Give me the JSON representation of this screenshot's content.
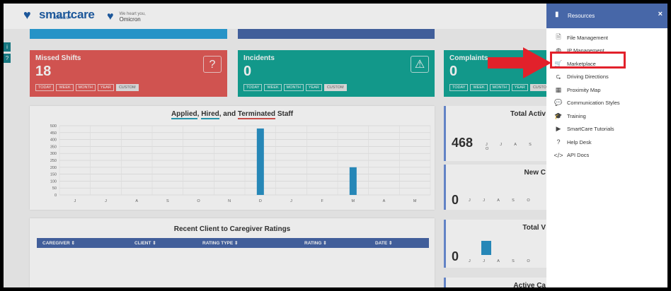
{
  "header": {
    "logo_text": "smartcare",
    "logo_sub": "software™",
    "tenant_tagline": "We heart you,",
    "tenant_name": "Omicron"
  },
  "side_tabs": [
    "i",
    "?"
  ],
  "stat_cards": [
    {
      "title": "Missed Shifts",
      "value": "18",
      "icon": "question-icon",
      "icon_glyph": "?",
      "color": "#e25b57"
    },
    {
      "title": "Incidents",
      "value": "0",
      "icon": "warning-icon",
      "icon_glyph": "⚠",
      "color": "#14a596"
    },
    {
      "title": "Complaints",
      "value": "0",
      "icon": "",
      "icon_glyph": "",
      "color": "#14a596"
    }
  ],
  "pills": [
    "TODAY",
    "WEEK",
    "MONTH",
    "YEAR",
    "CUSTOM"
  ],
  "staff_chart": {
    "title_parts": [
      "Applied",
      ", ",
      "Hired",
      ", and ",
      "Terminated",
      " Staff"
    ]
  },
  "chart_data": {
    "type": "bar",
    "categories": [
      "J",
      "J",
      "A",
      "S",
      "O",
      "N",
      "D",
      "J",
      "F",
      "M",
      "A",
      "M"
    ],
    "values": [
      0,
      0,
      0,
      0,
      0,
      0,
      480,
      0,
      0,
      200,
      0,
      0
    ],
    "y_ticks": [
      "500",
      "450",
      "400",
      "350",
      "300",
      "250",
      "200",
      "150",
      "100",
      "50",
      "0"
    ],
    "ylim": [
      0,
      500
    ],
    "color": "#2a93c7"
  },
  "ratings": {
    "title": "Recent Client to Caregiver Ratings",
    "columns": [
      "CAREGIVER ⇕",
      "CLIENT ⇕",
      "RATING TYPE ⇕",
      "RATING ⇕",
      "DATE ⇕"
    ]
  },
  "right_cards": [
    {
      "title": "Total Activ",
      "value": "468",
      "months": "J J A S O"
    },
    {
      "title": "New C",
      "value": "0",
      "months": "J J A S O"
    },
    {
      "title": "Total V",
      "value": "0",
      "months": "J J A S O"
    },
    {
      "title": "Active Ca",
      "value": "",
      "months": ""
    }
  ],
  "drawer": {
    "title": "Resources",
    "close": "×",
    "items": [
      {
        "label": "File Management",
        "icon": "file-icon",
        "glyph": "🗎"
      },
      {
        "label": "IP Management",
        "icon": "globe-icon",
        "glyph": "◍"
      },
      {
        "label": "Marketplace",
        "icon": "cart-icon",
        "glyph": "🛒"
      },
      {
        "label": "Driving Directions",
        "icon": "signpost-icon",
        "glyph": "⮎"
      },
      {
        "label": "Proximity Map",
        "icon": "map-icon",
        "glyph": "▦"
      },
      {
        "label": "Communication Styles",
        "icon": "chat-icon",
        "glyph": "💬"
      },
      {
        "label": "Training",
        "icon": "graduation-cap-icon",
        "glyph": "🎓"
      },
      {
        "label": "SmartCare Tutorials",
        "icon": "video-icon",
        "glyph": "▶"
      },
      {
        "label": "Help Desk",
        "icon": "help-circle-icon",
        "glyph": "?"
      },
      {
        "label": "API Docs",
        "icon": "code-icon",
        "glyph": "</>"
      }
    ]
  },
  "colors": {
    "accent": "#4767a8",
    "annotation_red": "#e2212b"
  }
}
